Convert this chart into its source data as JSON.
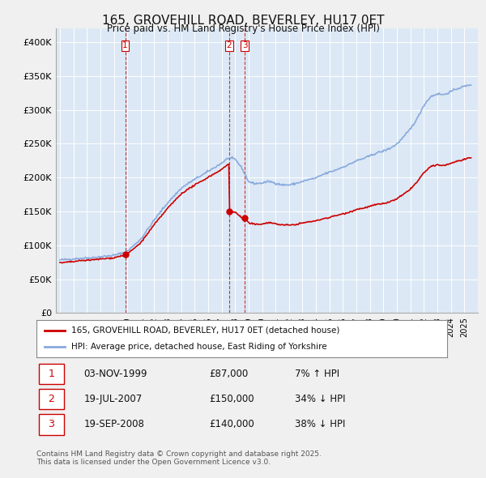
{
  "title": "165, GROVEHILL ROAD, BEVERLEY, HU17 0ET",
  "subtitle": "Price paid vs. HM Land Registry's House Price Index (HPI)",
  "legend_line1": "165, GROVEHILL ROAD, BEVERLEY, HU17 0ET (detached house)",
  "legend_line2": "HPI: Average price, detached house, East Riding of Yorkshire",
  "footer1": "Contains HM Land Registry data © Crown copyright and database right 2025.",
  "footer2": "This data is licensed under the Open Government Licence v3.0.",
  "table": [
    {
      "num": "1",
      "date": "03-NOV-1999",
      "price": "£87,000",
      "hpi": "7% ↑ HPI"
    },
    {
      "num": "2",
      "date": "19-JUL-2007",
      "price": "£150,000",
      "hpi": "34% ↓ HPI"
    },
    {
      "num": "3",
      "date": "19-SEP-2008",
      "price": "£140,000",
      "hpi": "38% ↓ HPI"
    }
  ],
  "sale_dates": [
    1999.84,
    2007.54,
    2008.72
  ],
  "sale_prices": [
    87000,
    150000,
    140000
  ],
  "vline_color": "#cc0000",
  "dot_color": "#cc0000",
  "line_color_red": "#cc0000",
  "line_color_blue": "#88aadd",
  "ylim": [
    0,
    420000
  ],
  "yticks": [
    0,
    50000,
    100000,
    150000,
    200000,
    250000,
    300000,
    350000,
    400000
  ],
  "ytick_labels": [
    "£0",
    "£50K",
    "£100K",
    "£150K",
    "£200K",
    "£250K",
    "£300K",
    "£350K",
    "£400K"
  ],
  "bg_color": "#f0f0f0",
  "plot_bg_color": "#dce8f5",
  "grid_color": "#ffffff"
}
